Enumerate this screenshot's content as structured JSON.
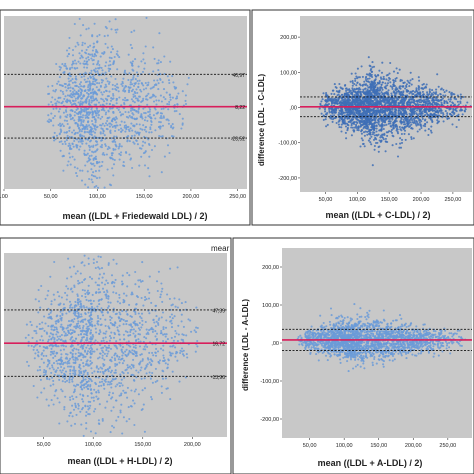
{
  "header": {
    "stray_text": ""
  },
  "chart_data": [
    {
      "type": "scatter",
      "panel": "top-left",
      "xlabel": "mean ((LDL + Friedewald LDL) / 2)",
      "ylabel": "",
      "x_ticks": [
        ".00",
        "50,00",
        "100,00",
        "150,00",
        "200,00",
        "250,00"
      ],
      "y_ticks": [],
      "xlim": [
        0,
        260
      ],
      "ylim": [
        -75,
        100
      ],
      "reference_lines": [
        {
          "label": "40,97",
          "value": 40.97,
          "style": "dashed"
        },
        {
          "label": "8,22",
          "value": 8.22,
          "style": "solid-red"
        },
        {
          "label": "-23,52",
          "value": -23.52,
          "style": "dashed"
        }
      ],
      "cloud": {
        "x_min": 45,
        "x_peak": 100,
        "x_max": 205,
        "spread": 42,
        "n": 1400
      },
      "grid": false,
      "legend": "none",
      "background": "#c8c8c8",
      "point_color": "#6b9bd8"
    },
    {
      "type": "scatter",
      "panel": "top-right",
      "xlabel": "mean ((LDL + C-LDL) / 2)",
      "ylabel": "difference  (LDL - C-LDL)",
      "x_ticks": [
        "50,00",
        "100,00",
        "150,00",
        "200,00",
        "250,00"
      ],
      "y_ticks": [
        "200,00",
        "100,00",
        ",00",
        "-100,00",
        "-200,00"
      ],
      "xlim": [
        10,
        280
      ],
      "ylim": [
        -240,
        260
      ],
      "reference_lines": [
        {
          "value": 30,
          "style": "dashed"
        },
        {
          "value": 2,
          "style": "solid-red"
        },
        {
          "value": -26,
          "style": "dashed"
        }
      ],
      "cloud": {
        "x_min": 40,
        "x_peak": 130,
        "x_max": 280,
        "spread": 48,
        "n": 2600
      },
      "grid": false,
      "legend": "none",
      "background": "#c8c8c8",
      "point_color": "#3e6fb6"
    },
    {
      "type": "scatter",
      "panel": "bottom-left",
      "xlabel": "mean  ((LDL + H-LDL) / 2)",
      "ylabel": "",
      "x_ticks": [
        "50,00",
        "100,00",
        "150,00",
        "200,00"
      ],
      "y_ticks": [],
      "xlim": [
        10,
        235
      ],
      "ylim": [
        -70,
        100
      ],
      "reference_lines": [
        {
          "label": "47,39",
          "value": 47.39,
          "style": "dashed"
        },
        {
          "label": "16,72",
          "value": 16.72,
          "style": "solid-red"
        },
        {
          "label": "-13,96",
          "value": -13.96,
          "style": "dashed"
        }
      ],
      "cloud": {
        "x_min": 30,
        "x_peak": 100,
        "x_max": 210,
        "spread": 44,
        "n": 1500
      },
      "grid": false,
      "legend": "none",
      "background": "#c8c8c8",
      "point_color": "#6b9bd8",
      "overflow_label": "mear"
    },
    {
      "type": "scatter",
      "panel": "bottom-right",
      "xlabel": "mean  ((LDL + A-LDL) / 2)",
      "ylabel": "difference  (LDL - A-LDL)",
      "x_ticks": [
        "50,00",
        "100,00",
        "150,00",
        "200,00",
        "250,00"
      ],
      "y_ticks": [
        "200,00",
        "100,00",
        ",00",
        "-100,00",
        "-200,00"
      ],
      "xlim": [
        10,
        285
      ],
      "ylim": [
        -250,
        250
      ],
      "reference_lines": [
        {
          "value": 36,
          "style": "dashed"
        },
        {
          "value": 8,
          "style": "solid-red"
        },
        {
          "value": -20,
          "style": "dashed"
        }
      ],
      "cloud": {
        "x_min": 30,
        "x_peak": 120,
        "x_max": 280,
        "spread": 30,
        "n": 2100
      },
      "grid": false,
      "legend": "none",
      "background": "#c8c8c8",
      "point_color": "#6b9bd8"
    }
  ]
}
